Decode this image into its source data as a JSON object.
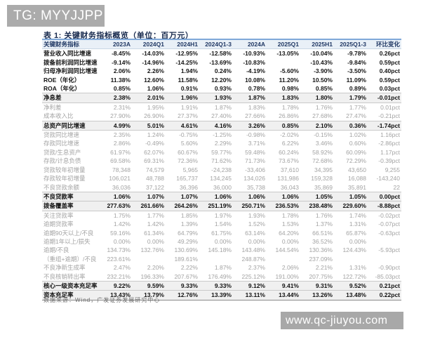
{
  "header": {
    "tag_label": "TG: MYYJJPP"
  },
  "document": {
    "table_title": "表 1: 关键财务指标概览（单位：百万元）",
    "source_note": "数据来源：Wind，广发证券发展研究中心"
  },
  "watermark": {
    "url_text": "www.qc-jiuyou.com"
  },
  "colors": {
    "tag_box_bg": "#ababab",
    "title_text": "#17294d",
    "header_accent_line": "#7fa8d9",
    "header_row_bg": "#e9f0f7",
    "header_text": "#203864",
    "band_row_bg": "#f0f0f0",
    "muted_text": "#a3a3a3",
    "watermark_bg": "#a8a8a8"
  },
  "table": {
    "columns": [
      "关键财务指标",
      "2023A",
      "2024Q1",
      "2024H1",
      "2024Q1-3",
      "2024A",
      "2025Q1",
      "2025H1",
      "2025Q1-3",
      "环比变化"
    ],
    "rows": [
      {
        "label": "营业收入同比增速",
        "style": "strong",
        "values": [
          "-8.45%",
          "-14.03%",
          "-12.95%",
          "-12.58%",
          "-10.93%",
          "-13.05%",
          "-10.04%",
          "-9.78%",
          "0.26pct"
        ]
      },
      {
        "label": "拨备前利润同比增速",
        "style": "strong",
        "values": [
          "-9.14%",
          "-14.96%",
          "-14.25%",
          "-13.69%",
          "-10.83%",
          "",
          "-10.43%",
          "-9.84%",
          "0.59pct"
        ]
      },
      {
        "label": "归母净利润同比增速",
        "style": "strong",
        "values": [
          "2.06%",
          "2.26%",
          "1.94%",
          "0.24%",
          "-4.19%",
          "-5.60%",
          "-3.90%",
          "-3.50%",
          "0.40pct"
        ]
      },
      {
        "label": "ROE（年化）",
        "style": "strong",
        "values": [
          "11.38%",
          "12.60%",
          "11.58%",
          "12.20%",
          "10.08%",
          "11.20%",
          "10.50%",
          "11.09%",
          "0.59pct"
        ]
      },
      {
        "label": "ROA（年化）",
        "style": "strong",
        "values": [
          "0.85%",
          "1.06%",
          "0.91%",
          "0.93%",
          "0.78%",
          "0.98%",
          "0.85%",
          "0.89%",
          "0.03pct"
        ]
      },
      {
        "label": "净息差",
        "style": "band",
        "values": [
          "2.38%",
          "2.01%",
          "1.96%",
          "1.93%",
          "1.87%",
          "1.83%",
          "1.80%",
          "1.79%",
          "-0.01pct"
        ]
      },
      {
        "label": "净利差",
        "style": "muted",
        "values": [
          "2.31%",
          "1.95%",
          "1.91%",
          "1.87%",
          "1.83%",
          "1.78%",
          "1.76%",
          "1.77%",
          "0.01pct"
        ]
      },
      {
        "label": "成本收入比",
        "style": "muted",
        "values": [
          "27.90%",
          "26.90%",
          "27.37%",
          "27.40%",
          "27.66%",
          "26.86%",
          "27.68%",
          "27.47%",
          "-0.21pct"
        ]
      },
      {
        "label": "总资产同比增速",
        "style": "band",
        "values": [
          "4.99%",
          "5.01%",
          "4.61%",
          "4.16%",
          "3.26%",
          "0.85%",
          "2.10%",
          "0.36%",
          "-1.74pct"
        ]
      },
      {
        "label": "贷款同比增速",
        "style": "muted",
        "values": [
          "2.35%",
          "1.24%",
          "-0.75%",
          "-1.25%",
          "-0.98%",
          "-2.02%",
          "-0.15%",
          "1.02%",
          "1.16pct"
        ]
      },
      {
        "label": "存款同比增速",
        "style": "muted",
        "values": [
          "2.86%",
          "-0.49%",
          "5.60%",
          "2.29%",
          "3.71%",
          "6.22%",
          "3.46%",
          "0.60%",
          "-2.86pct"
        ]
      },
      {
        "label": "贷款/生息资产",
        "style": "muted",
        "values": [
          "61.97%",
          "62.07%",
          "60.67%",
          "59.77%",
          "59.48%",
          "60.24%",
          "58.92%",
          "60.09%",
          "1.17pct"
        ]
      },
      {
        "label": "存款/计息负债",
        "style": "muted",
        "values": [
          "69.58%",
          "69.31%",
          "72.36%",
          "71.62%",
          "71.73%",
          "73.67%",
          "72.68%",
          "72.29%",
          "-0.39pct"
        ]
      },
      {
        "label": "贷款较年初增量",
        "style": "muted",
        "values": [
          "78,348",
          "74,579",
          "5,965",
          "-24,238",
          "-33,406",
          "37,610",
          "34,395",
          "43,650",
          "9,255"
        ]
      },
      {
        "label": "存款较年初增量",
        "style": "muted",
        "values": [
          "106,021",
          "48,788",
          "165,737",
          "134,245",
          "134,026",
          "131,986",
          "159,328",
          "16,088",
          "-143,240"
        ]
      },
      {
        "label": "不良贷款余额",
        "style": "muted",
        "values": [
          "36,036",
          "37,122",
          "36,396",
          "36,000",
          "35,738",
          "36,043",
          "35,869",
          "35,891",
          "22"
        ]
      },
      {
        "label": "不良贷款率",
        "style": "band",
        "values": [
          "1.06%",
          "1.07%",
          "1.07%",
          "1.06%",
          "1.06%",
          "1.06%",
          "1.05%",
          "1.05%",
          "0.00pct"
        ]
      },
      {
        "label": "拨备覆盖率",
        "style": "band",
        "values": [
          "277.63%",
          "261.66%",
          "264.26%",
          "251.19%",
          "250.71%",
          "236.53%",
          "238.48%",
          "229.60%",
          "-8.88pct"
        ]
      },
      {
        "label": "关注贷款率",
        "style": "muted",
        "values": [
          "1.75%",
          "1.77%",
          "1.85%",
          "1.97%",
          "1.93%",
          "1.78%",
          "1.76%",
          "1.74%",
          "-0.02pct"
        ]
      },
      {
        "label": "逾期贷款率",
        "style": "muted",
        "values": [
          "1.42%",
          "1.42%",
          "1.39%",
          "1.54%",
          "1.52%",
          "1.53%",
          "1.37%",
          "1.31%",
          "-0.07pct"
        ]
      },
      {
        "label": "逾期90天以上/不良",
        "style": "muted",
        "values": [
          "59.16%",
          "61.34%",
          "64.79%",
          "61.75%",
          "63.14%",
          "64.20%",
          "66.51%",
          "65.87%",
          "-0.63pct"
        ]
      },
      {
        "label": "逾期1年以上/损失",
        "style": "muted",
        "values": [
          "0.00%",
          "0.00%",
          "49.29%",
          "0.00%",
          "0.00%",
          "0.00%",
          "36.52%",
          "0.00%",
          ""
        ]
      },
      {
        "label": "逾期/不良",
        "style": "muted",
        "values": [
          "134.73%",
          "132.76%",
          "130.69%",
          "145.18%",
          "143.48%",
          "144.54%",
          "130.36%",
          "124.43%",
          "-5.93pct"
        ]
      },
      {
        "label": "（重组+逾期）/不良",
        "style": "muted",
        "values": [
          "223.61%",
          "",
          "189.61%",
          "",
          "248.87%",
          "",
          "237.09%",
          "",
          ""
        ]
      },
      {
        "label": "不良净新生成率",
        "style": "muted",
        "values": [
          "2.47%",
          "2.20%",
          "2.22%",
          "1.87%",
          "2.37%",
          "2.06%",
          "2.21%",
          "1.31%",
          "-0.90pct"
        ]
      },
      {
        "label": "不良核销转出率",
        "style": "muted",
        "values": [
          "232.21%",
          "196.33%",
          "207.67%",
          "176.49%",
          "225.12%",
          "191.00%",
          "207.75%",
          "122.72%",
          "-85.03pct"
        ]
      },
      {
        "label": "核心一级资本充足率",
        "style": "band",
        "values": [
          "9.22%",
          "9.59%",
          "9.33%",
          "9.33%",
          "9.12%",
          "9.41%",
          "9.31%",
          "9.52%",
          "0.21pct"
        ]
      },
      {
        "label": "资本充足率",
        "style": "band",
        "values": [
          "13.43%",
          "13.79%",
          "12.76%",
          "13.39%",
          "13.11%",
          "13.44%",
          "13.26%",
          "13.48%",
          "0.22pct"
        ]
      }
    ]
  }
}
